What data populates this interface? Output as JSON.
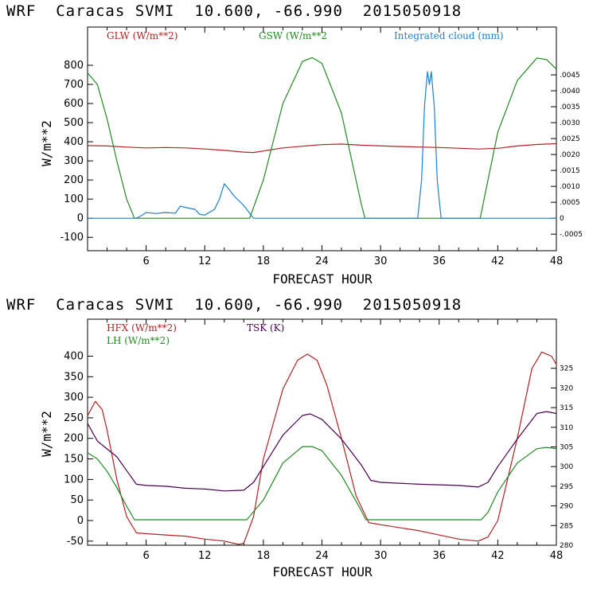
{
  "chart_data": [
    {
      "type": "line",
      "title": "WRF  Caracas SVMI  10.600, -66.990  2015050918",
      "xlabel": "FORECAST HOUR",
      "ylabel": "W/m**2",
      "xlim": [
        0,
        48
      ],
      "ylim": [
        -170,
        1000
      ],
      "y2lim": [
        -0.00102,
        0.006
      ],
      "xticks": [
        "6",
        "12",
        "18",
        "24",
        "30",
        "36",
        "42",
        "48"
      ],
      "yticks": [
        "-100",
        "0",
        "100",
        "200",
        "300",
        "400",
        "500",
        "600",
        "700",
        "800"
      ],
      "y2ticks": [
        "-.0005",
        "0",
        ".0005",
        ".0010",
        ".0015",
        ".0020",
        ".0025",
        ".0030",
        ".0035",
        ".0040",
        ".0045"
      ],
      "series": [
        {
          "name": "GLW (W/m**2)",
          "color": "#b22222",
          "axis": "left",
          "x": [
            0,
            2,
            4,
            6,
            8,
            10,
            12,
            14,
            16,
            17,
            20,
            24,
            26,
            28,
            32,
            36,
            40,
            42,
            44,
            46,
            48
          ],
          "y": [
            380,
            378,
            372,
            368,
            370,
            368,
            362,
            355,
            346,
            344,
            368,
            385,
            388,
            382,
            375,
            370,
            362,
            366,
            378,
            386,
            390
          ]
        },
        {
          "name": "GSW (W/m**2",
          "color": "#228b22",
          "axis": "left",
          "x": [
            0,
            1,
            2,
            3,
            4,
            4.8,
            16.6,
            18,
            20,
            22,
            23,
            24,
            26,
            28,
            28.4,
            40.2,
            41,
            42,
            44,
            46,
            47,
            48
          ],
          "y": [
            760,
            700,
            520,
            300,
            100,
            0,
            0,
            200,
            600,
            820,
            840,
            810,
            550,
            80,
            0,
            0,
            200,
            450,
            720,
            838,
            830,
            780
          ]
        },
        {
          "name": "Integrated cloud (mm)",
          "color": "#1e7fd0",
          "axis": "right",
          "x": [
            0,
            5,
            5.5,
            6,
            7,
            8,
            9,
            9.5,
            10,
            11,
            11.5,
            12,
            13,
            13.5,
            14,
            14.5,
            15,
            16,
            17,
            33.8,
            34.2,
            34.5,
            34.8,
            35,
            35.2,
            35.5,
            35.8,
            36.2,
            48
          ],
          "y": [
            0,
            0,
            8e-05,
            0.00018,
            0.00015,
            0.00018,
            0.00016,
            0.00038,
            0.00034,
            0.00028,
            0.00012,
            0.0001,
            0.00028,
            0.0006,
            0.00108,
            0.0009,
            0.0007,
            0.0004,
            0,
            0,
            0.0012,
            0.0035,
            0.0046,
            0.0042,
            0.0046,
            0.0035,
            0.0012,
            0,
            0
          ]
        }
      ]
    },
    {
      "type": "line",
      "title": "WRF  Caracas SVMI  10.600, -66.990  2015050918",
      "xlabel": "FORECAST HOUR",
      "ylabel": "W/m**2",
      "xlim": [
        0,
        48
      ],
      "ylim": [
        -60,
        490
      ],
      "y2lim": [
        280,
        337.5
      ],
      "xticks": [
        "6",
        "12",
        "18",
        "24",
        "30",
        "36",
        "42",
        "48"
      ],
      "yticks": [
        "-50",
        "0",
        "50",
        "100",
        "150",
        "200",
        "250",
        "300",
        "350",
        "400"
      ],
      "y2ticks": [
        "280",
        "285",
        "290",
        "295",
        "300",
        "305",
        "310",
        "315",
        "320",
        "325"
      ],
      "series": [
        {
          "name": "HFX (W/m**2)",
          "color": "#b22222",
          "axis": "left",
          "x": [
            0,
            0.8,
            1.5,
            2,
            3,
            4,
            5,
            6,
            8,
            10,
            12,
            14,
            15.5,
            16,
            17,
            18,
            20,
            21.5,
            22.5,
            23.5,
            24.5,
            26,
            27.5,
            28.8,
            30,
            34,
            38,
            40,
            41,
            42,
            44,
            45.5,
            46.5,
            47.5,
            48
          ],
          "y": [
            255,
            290,
            270,
            220,
            100,
            10,
            -30,
            -32,
            -35,
            -38,
            -45,
            -50,
            -58,
            -55,
            10,
            150,
            320,
            390,
            405,
            390,
            330,
            200,
            60,
            -5,
            -10,
            -25,
            -45,
            -50,
            -40,
            0,
            200,
            370,
            410,
            400,
            380
          ]
        },
        {
          "name": "LH (W/m**2)",
          "color": "#228b22",
          "axis": "left",
          "x": [
            0,
            1,
            2,
            3,
            4,
            4.8,
            16.3,
            18,
            20,
            22,
            23,
            24,
            26,
            28,
            28.5,
            40.3,
            41,
            42,
            44,
            46,
            47,
            48
          ],
          "y": [
            165,
            150,
            120,
            80,
            35,
            2,
            2,
            50,
            140,
            180,
            180,
            170,
            110,
            25,
            2,
            2,
            20,
            70,
            140,
            175,
            178,
            175
          ]
        },
        {
          "name": "TSK (K)",
          "color": "#4b0050",
          "axis": "right",
          "x": [
            0,
            1,
            2,
            3,
            4,
            5,
            6,
            8,
            10,
            12,
            14,
            16,
            17,
            18,
            20,
            22,
            22.8,
            24,
            26,
            28,
            29,
            30,
            34,
            38,
            40,
            41,
            42,
            44,
            46,
            47,
            48
          ],
          "y": [
            311,
            306.5,
            304.5,
            302.5,
            299,
            295.5,
            295.2,
            295,
            294.5,
            294.3,
            293.8,
            294,
            296,
            300,
            308,
            313,
            313.4,
            312,
            307,
            300.5,
            296.5,
            296,
            295.5,
            295.2,
            294.8,
            296,
            300,
            307,
            313.5,
            314,
            313.5
          ]
        }
      ]
    }
  ]
}
